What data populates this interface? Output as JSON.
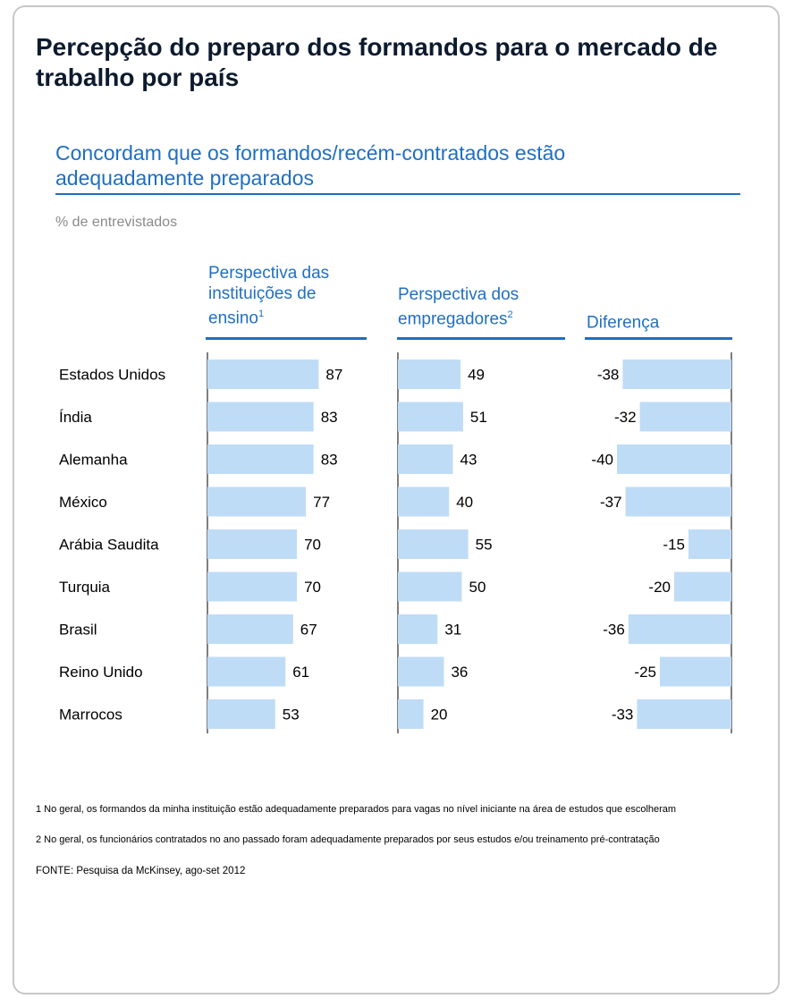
{
  "title": "Percepção do preparo dos formandos para o mercado de trabalho por país",
  "subtitle": "Concordam que os formandos/recém-contratados estão adequadamente preparados",
  "unit_label": "% de entrevistados",
  "columns": {
    "instituicoes": {
      "label": "Perspectiva das instituições de ensino",
      "sup": "1"
    },
    "empregadores": {
      "label": "Perspectiva dos empregadores",
      "sup": "2"
    },
    "diferenca": {
      "label": "Diferença",
      "sup": ""
    }
  },
  "footnotes": {
    "note1": "1 No geral, os formandos da minha instituição estão adequadamente preparados para vagas no nível iniciante na área de estudos que escolheram",
    "note2": "2 No geral, os funcionários contratados no ano passado foram adequadamente preparados por seus estudos e/ou treinamento pré-contratação"
  },
  "source": "FONTE: Pesquisa da McKinsey, ago-set 2012",
  "colors": {
    "bar": "#bfdcf7",
    "accent": "#1f6fc1",
    "axis": "#555555"
  },
  "chart_data": {
    "type": "bar",
    "orientation": "horizontal",
    "categories": [
      "Estados Unidos",
      "Índia",
      "Alemanha",
      "México",
      "Arábia Saudita",
      "Turquia",
      "Brasil",
      "Reino Unido",
      "Marrocos"
    ],
    "series": [
      {
        "name": "Perspectiva das instituições de ensino",
        "values": [
          87,
          83,
          83,
          77,
          70,
          70,
          67,
          61,
          53
        ]
      },
      {
        "name": "Perspectiva dos empregadores",
        "values": [
          49,
          51,
          43,
          40,
          55,
          50,
          31,
          36,
          20
        ]
      },
      {
        "name": "Diferença",
        "values": [
          -38,
          -32,
          -40,
          -37,
          -15,
          -20,
          -36,
          -25,
          -33
        ]
      }
    ]
  }
}
